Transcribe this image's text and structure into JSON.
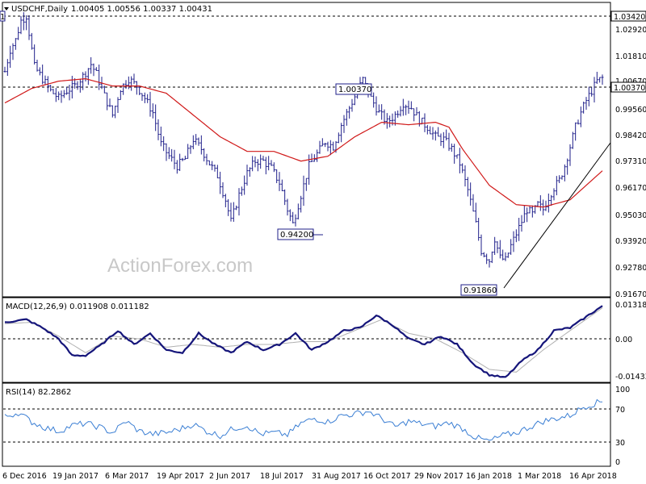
{
  "header": {
    "symbol_timeframe": "USDCHF,Daily",
    "ohlc": "1.00405 1.00556 1.00337 1.00431"
  },
  "watermark": "ActionForex.com",
  "colors": {
    "background": "#ffffff",
    "price_bars": "#1f1f8a",
    "ma_line": "#d01818",
    "macd_main": "#15157a",
    "macd_signal": "#b0b0b0",
    "rsi_line": "#3b7fd4",
    "frame": "#000000",
    "dashed": "#000000"
  },
  "price_axis": {
    "ticks": [
      "1.02920",
      "1.01810",
      "1.00670",
      "0.99560",
      "0.98420",
      "0.97310",
      "0.96170",
      "0.95030",
      "0.93920",
      "0.92780",
      "0.91670"
    ],
    "current_price_label": "1.00370",
    "resistance_label": "1.03420"
  },
  "annotations": {
    "high_oct": "1.00370",
    "low_aug": "0.94200",
    "low_feb": "0.91860",
    "top_left_box": "1"
  },
  "macd": {
    "label": "MACD(12,26,9) 0.011908 0.011182",
    "ticks": [
      "0.013184",
      "0.00",
      "-0.014339"
    ]
  },
  "rsi": {
    "label": "RSI(14) 82.2862",
    "ticks": [
      "100",
      "70",
      "30",
      "0"
    ]
  },
  "x_axis": {
    "labels": [
      "6 Dec 2016",
      "19 Jan 2017",
      "6 Mar 2017",
      "19 Apr 2017",
      "2 Jun 2017",
      "18 Jul 2017",
      "31 Aug 2017",
      "16 Oct 2017",
      "29 Nov 2017",
      "16 Jan 2018",
      "1 Mar 2018",
      "16 Apr 2018"
    ]
  },
  "chart_data": [
    {
      "type": "candlestick",
      "title": "USDCHF,Daily",
      "xlabel": "",
      "ylabel": "",
      "ylim": [
        0.9139,
        1.0352
      ],
      "x_tick_labels": [
        "6 Dec 2016",
        "19 Jan 2017",
        "6 Mar 2017",
        "19 Apr 2017",
        "2 Jun 2017",
        "18 Jul 2017",
        "31 Aug 2017",
        "16 Oct 2017",
        "29 Nov 2017",
        "16 Jan 2018",
        "1 Mar 2018",
        "16 Apr 2018"
      ],
      "y_tick_labels": [
        "1.02920",
        "1.01810",
        "1.00670",
        "0.99560",
        "0.98420",
        "0.97310",
        "0.96170",
        "0.95030",
        "0.93920",
        "0.92780",
        "0.91670"
      ],
      "close_path": [
        [
          0,
          1.007
        ],
        [
          2,
          1.016
        ],
        [
          4,
          1.02
        ],
        [
          6,
          1.028
        ],
        [
          8,
          1.03
        ],
        [
          11,
          1.009
        ],
        [
          14,
          1.004
        ],
        [
          17,
          0.999
        ],
        [
          20,
          0.996
        ],
        [
          23,
          0.999
        ],
        [
          26,
          1.001
        ],
        [
          29,
          1.005
        ],
        [
          32,
          1.01
        ],
        [
          34,
          1.006
        ],
        [
          37,
          0.997
        ],
        [
          40,
          0.989
        ],
        [
          43,
          1.0
        ],
        [
          46,
          1.004
        ],
        [
          49,
          1.001
        ],
        [
          52,
          0.996
        ],
        [
          55,
          0.99
        ],
        [
          58,
          0.977
        ],
        [
          61,
          0.972
        ],
        [
          64,
          0.968
        ],
        [
          67,
          0.971
        ],
        [
          70,
          0.979
        ],
        [
          73,
          0.975
        ],
        [
          76,
          0.969
        ],
        [
          79,
          0.964
        ],
        [
          82,
          0.954
        ],
        [
          84,
          0.945
        ],
        [
          87,
          0.956
        ],
        [
          90,
          0.965
        ],
        [
          93,
          0.97
        ],
        [
          96,
          0.97
        ],
        [
          99,
          0.967
        ],
        [
          102,
          0.961
        ],
        [
          105,
          0.95
        ],
        [
          107,
          0.944
        ],
        [
          110,
          0.956
        ],
        [
          113,
          0.968
        ],
        [
          116,
          0.973
        ],
        [
          119,
          0.978
        ],
        [
          122,
          0.976
        ],
        [
          125,
          0.985
        ],
        [
          128,
          0.992
        ],
        [
          131,
          0.999
        ],
        [
          133,
          1.0037
        ],
        [
          136,
          0.996
        ],
        [
          139,
          0.99
        ],
        [
          142,
          0.986
        ],
        [
          145,
          0.989
        ],
        [
          148,
          0.994
        ],
        [
          151,
          0.992
        ],
        [
          154,
          0.987
        ],
        [
          157,
          0.984
        ],
        [
          160,
          0.98
        ],
        [
          163,
          0.979
        ],
        [
          166,
          0.975
        ],
        [
          169,
          0.969
        ],
        [
          172,
          0.958
        ],
        [
          175,
          0.944
        ],
        [
          177,
          0.933
        ],
        [
          180,
          0.929
        ],
        [
          182,
          0.938
        ],
        [
          184,
          0.93
        ],
        [
          186,
          0.929
        ],
        [
          188,
          0.935
        ],
        [
          190,
          0.94
        ],
        [
          192,
          0.945
        ],
        [
          194,
          0.95
        ],
        [
          196,
          0.948
        ],
        [
          198,
          0.952
        ],
        [
          200,
          0.95
        ],
        [
          202,
          0.955
        ],
        [
          204,
          0.959
        ],
        [
          206,
          0.962
        ],
        [
          208,
          0.968
        ],
        [
          210,
          0.976
        ],
        [
          212,
          0.984
        ],
        [
          214,
          0.99
        ],
        [
          216,
          0.995
        ],
        [
          218,
          0.999
        ],
        [
          220,
          1.003
        ],
        [
          222,
          1.0043
        ]
      ],
      "marked_levels": [
        {
          "label": "1.03420",
          "value": 1.0342
        },
        {
          "label": "1.00370",
          "value": 1.0037
        },
        {
          "label": "0.94200",
          "value": 0.942
        },
        {
          "label": "0.91860",
          "value": 0.9186
        }
      ],
      "series": [
        {
          "name": "moving average",
          "values_path": [
            [
              0,
              0.994
            ],
            [
              10,
              1.0
            ],
            [
              20,
              1.003
            ],
            [
              30,
              1.004
            ],
            [
              40,
              1.001
            ],
            [
              50,
              1.001
            ],
            [
              60,
              0.998
            ],
            [
              70,
              0.989
            ],
            [
              80,
              0.98
            ],
            [
              90,
              0.974
            ],
            [
              100,
              0.974
            ],
            [
              110,
              0.97
            ],
            [
              120,
              0.972
            ],
            [
              130,
              0.98
            ],
            [
              140,
              0.986
            ],
            [
              150,
              0.985
            ],
            [
              160,
              0.986
            ],
            [
              165,
              0.984
            ],
            [
              170,
              0.975
            ],
            [
              180,
              0.96
            ],
            [
              190,
              0.952
            ],
            [
              200,
              0.951
            ],
            [
              210,
              0.954
            ],
            [
              222,
              0.966
            ]
          ]
        }
      ]
    },
    {
      "type": "line",
      "title": "MACD(12,26,9) 0.011908 0.011182",
      "ylim": [
        -0.0157,
        0.0146
      ],
      "y_tick_labels": [
        "0.013184",
        "0.00",
        "-0.014339"
      ],
      "series": [
        {
          "name": "MACD main",
          "values_path": [
            [
              0,
              0.006
            ],
            [
              8,
              0.007
            ],
            [
              14,
              0.004
            ],
            [
              20,
              0.0
            ],
            [
              25,
              -0.006
            ],
            [
              30,
              -0.006
            ],
            [
              36,
              -0.002
            ],
            [
              42,
              0.003
            ],
            [
              48,
              -0.002
            ],
            [
              54,
              0.002
            ],
            [
              60,
              -0.004
            ],
            [
              66,
              -0.005
            ],
            [
              72,
              0.002
            ],
            [
              78,
              -0.002
            ],
            [
              84,
              -0.005
            ],
            [
              90,
              -0.001
            ],
            [
              96,
              -0.004
            ],
            [
              102,
              -0.002
            ],
            [
              108,
              0.002
            ],
            [
              114,
              -0.004
            ],
            [
              120,
              -0.001
            ],
            [
              126,
              0.003
            ],
            [
              132,
              0.004
            ],
            [
              138,
              0.0085
            ],
            [
              144,
              0.005
            ],
            [
              150,
              0.0
            ],
            [
              156,
              -0.002
            ],
            [
              162,
              0.001
            ],
            [
              168,
              -0.002
            ],
            [
              174,
              -0.009
            ],
            [
              180,
              -0.013
            ],
            [
              186,
              -0.014
            ],
            [
              192,
              -0.008
            ],
            [
              198,
              -0.004
            ],
            [
              204,
              0.003
            ],
            [
              210,
              0.004
            ],
            [
              216,
              0.008
            ],
            [
              222,
              0.0119
            ]
          ]
        },
        {
          "name": "Signal",
          "values_path": [
            [
              0,
              0.0055
            ],
            [
              10,
              0.006
            ],
            [
              20,
              0.001
            ],
            [
              30,
              -0.005
            ],
            [
              40,
              0.001
            ],
            [
              50,
              0.0
            ],
            [
              60,
              -0.003
            ],
            [
              70,
              -0.002
            ],
            [
              80,
              -0.003
            ],
            [
              90,
              -0.002
            ],
            [
              100,
              -0.002
            ],
            [
              110,
              -0.001
            ],
            [
              120,
              -0.001
            ],
            [
              130,
              0.003
            ],
            [
              140,
              0.007
            ],
            [
              150,
              0.002
            ],
            [
              160,
              0.0
            ],
            [
              170,
              -0.005
            ],
            [
              180,
              -0.011
            ],
            [
              190,
              -0.012
            ],
            [
              200,
              -0.004
            ],
            [
              210,
              0.003
            ],
            [
              222,
              0.0112
            ]
          ]
        }
      ]
    },
    {
      "type": "line",
      "title": "RSI(14) 82.2862",
      "ylim": [
        0,
        100
      ],
      "y_tick_labels": [
        "100",
        "70",
        "30",
        "0"
      ],
      "series": [
        {
          "name": "RSI(14)",
          "values_path": [
            [
              0,
              62
            ],
            [
              5,
              68
            ],
            [
              10,
              55
            ],
            [
              15,
              47
            ],
            [
              20,
              42
            ],
            [
              25,
              50
            ],
            [
              30,
              53
            ],
            [
              35,
              48
            ],
            [
              40,
              40
            ],
            [
              45,
              56
            ],
            [
              50,
              42
            ],
            [
              55,
              38
            ],
            [
              60,
              40
            ],
            [
              65,
              45
            ],
            [
              70,
              52
            ],
            [
              75,
              42
            ],
            [
              80,
              36
            ],
            [
              85,
              46
            ],
            [
              90,
              50
            ],
            [
              95,
              38
            ],
            [
              100,
              40
            ],
            [
              105,
              37
            ],
            [
              110,
              53
            ],
            [
              115,
              60
            ],
            [
              120,
              55
            ],
            [
              125,
              64
            ],
            [
              130,
              66
            ],
            [
              135,
              70
            ],
            [
              140,
              60
            ],
            [
              145,
              48
            ],
            [
              150,
              56
            ],
            [
              155,
              52
            ],
            [
              160,
              49
            ],
            [
              165,
              54
            ],
            [
              170,
              46
            ],
            [
              175,
              33
            ],
            [
              180,
              28
            ],
            [
              185,
              36
            ],
            [
              190,
              40
            ],
            [
              195,
              48
            ],
            [
              200,
              56
            ],
            [
              205,
              60
            ],
            [
              210,
              64
            ],
            [
              215,
              76
            ],
            [
              222,
              84
            ]
          ]
        }
      ]
    }
  ]
}
